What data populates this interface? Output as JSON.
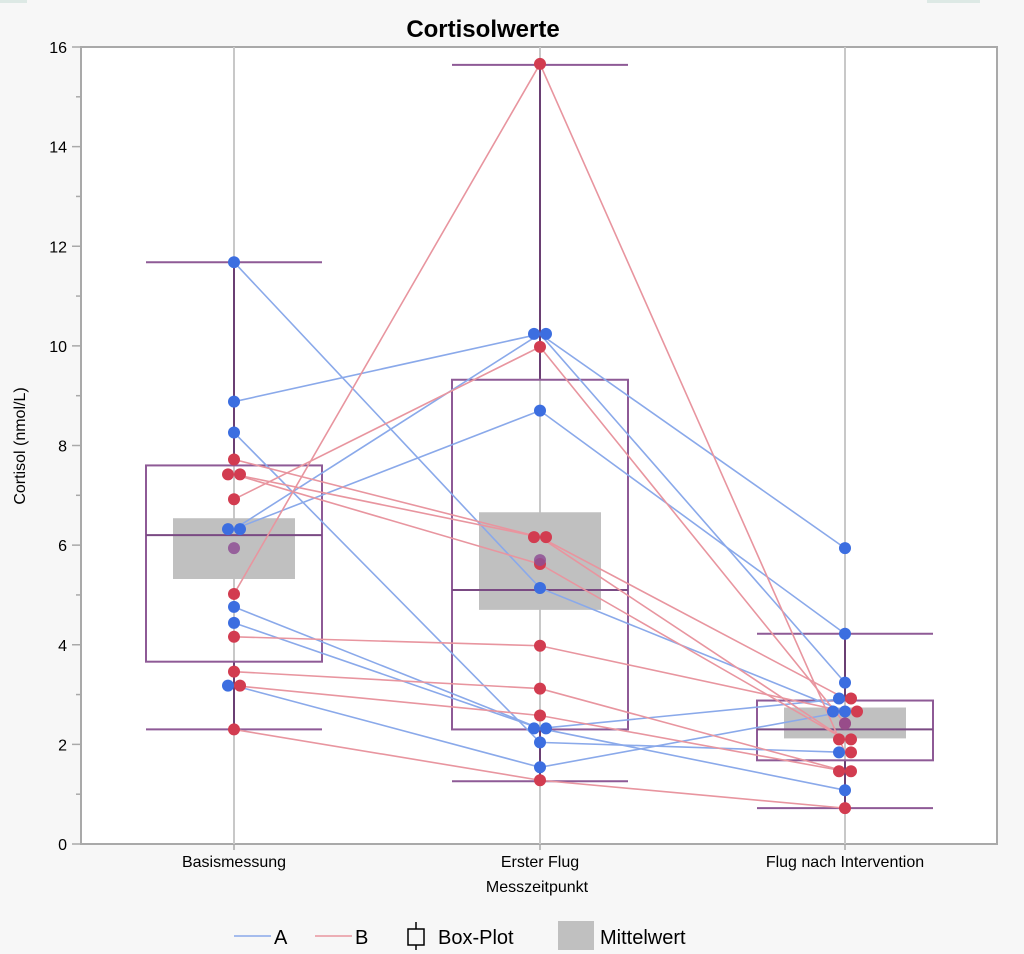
{
  "chart_data": {
    "type": "box-plot-with-paired-lines",
    "title": "Cortisolwerte",
    "xlabel": "Messzeitpunkt",
    "ylabel": "Cortisol (nmol/L)",
    "ylim": [
      0,
      16
    ],
    "y_major_ticks": [
      0,
      2,
      4,
      6,
      8,
      10,
      12,
      14,
      16
    ],
    "y_minor_step": 1,
    "grid": "vertical lines at categories",
    "categories": [
      "Basismessung",
      "Erster Flug",
      "Flug nach Intervention"
    ],
    "colors": {
      "A": "#3c6ee0",
      "A_line": "#8aa9ea",
      "B": "#d23c50",
      "B_line": "#e8959f",
      "box": "#8e5a96",
      "mean_box": "#c0c0c0",
      "grid": "#c8c8c8",
      "frame": "#a9a9a9"
    },
    "series": [
      {
        "name": "A",
        "subjects": [
          [
            11.68,
            5.14,
            2.66
          ],
          [
            8.88,
            10.24,
            5.94
          ],
          [
            8.26,
            2.04,
            1.84
          ],
          [
            6.32,
            10.24,
            3.24
          ],
          [
            6.32,
            8.7,
            4.22
          ],
          [
            4.76,
            2.32,
            2.92
          ],
          [
            4.44,
            2.32,
            1.08
          ],
          [
            3.18,
            1.54,
            2.66
          ]
        ]
      },
      {
        "name": "B",
        "subjects": [
          [
            7.72,
            6.16,
            2.92
          ],
          [
            7.42,
            6.16,
            2.1
          ],
          [
            7.42,
            5.62,
            2.1
          ],
          [
            6.92,
            9.98,
            2.42
          ],
          [
            5.02,
            15.66,
            1.84
          ],
          [
            4.16,
            3.98,
            2.66
          ],
          [
            3.46,
            3.12,
            1.46
          ],
          [
            3.18,
            2.58,
            1.46
          ],
          [
            2.3,
            1.28,
            0.72
          ]
        ]
      }
    ],
    "boxplots": [
      {
        "category": "Basismessung",
        "whisker_low": 2.3,
        "q1": 3.66,
        "median": 6.2,
        "q3": 7.6,
        "whisker_high": 11.68
      },
      {
        "category": "Erster Flug",
        "whisker_low": 1.26,
        "q1": 2.3,
        "median": 5.1,
        "q3": 9.32,
        "whisker_high": 15.64
      },
      {
        "category": "Flug nach Intervention",
        "whisker_low": 0.72,
        "q1": 1.68,
        "median": 2.3,
        "q3": 2.88,
        "whisker_high": 4.22
      }
    ],
    "means": [
      {
        "category": "Basismessung",
        "mean": 5.94,
        "ci_low": 5.32,
        "ci_high": 6.54
      },
      {
        "category": "Erster Flug",
        "mean": 5.7,
        "ci_low": 4.7,
        "ci_high": 6.66
      },
      {
        "category": "Flug nach Intervention",
        "mean": 2.42,
        "ci_low": 2.12,
        "ci_high": 2.74
      }
    ],
    "legend": {
      "placement": "bottom",
      "items": [
        {
          "label": "A",
          "kind": "line",
          "color": "#8aa9ea"
        },
        {
          "label": "B",
          "kind": "line",
          "color": "#e8959f"
        },
        {
          "label": "Box-Plot",
          "kind": "box-plot-icon"
        },
        {
          "label": "Mittelwert",
          "kind": "swatch",
          "color": "#c0c0c0"
        }
      ]
    }
  }
}
